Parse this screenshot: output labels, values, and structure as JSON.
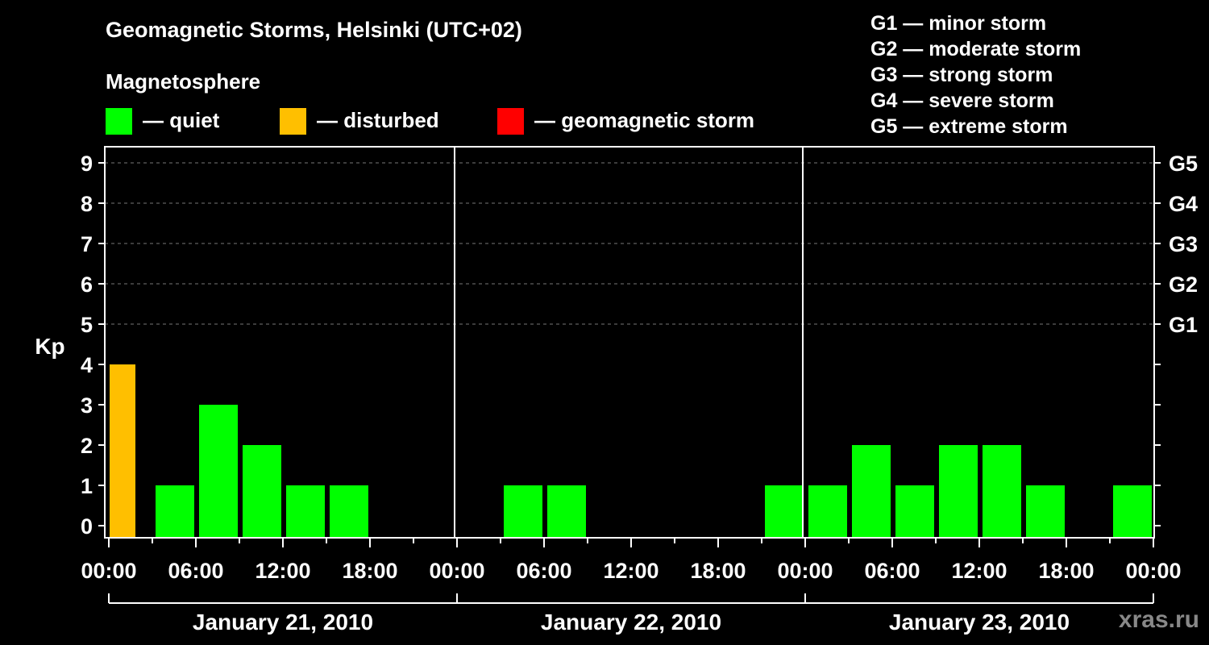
{
  "title": "Geomagnetic Storms, Helsinki (UTC+02)",
  "subtitle": "Magnetosphere",
  "legend": [
    {
      "label": "— quiet",
      "color": "#00ff00"
    },
    {
      "label": "— disturbed",
      "color": "#ffbf00"
    },
    {
      "label": "— geomagnetic storm",
      "color": "#ff0000"
    }
  ],
  "g_levels": [
    "G1 — minor storm",
    "G2 — moderate storm",
    "G3 — strong storm",
    "G4 — severe storm",
    "G5 — extreme storm"
  ],
  "watermark": "xras.ru",
  "chart_data": {
    "type": "bar",
    "ylabel": "Kp",
    "ylim": [
      0,
      9
    ],
    "y_ticks": [
      0,
      1,
      2,
      3,
      4,
      5,
      6,
      7,
      8,
      9
    ],
    "right_axis_labels": [
      {
        "kp": 5,
        "label": "G1"
      },
      {
        "kp": 6,
        "label": "G2"
      },
      {
        "kp": 7,
        "label": "G3"
      },
      {
        "kp": 8,
        "label": "G4"
      },
      {
        "kp": 9,
        "label": "G5"
      }
    ],
    "x_tick_labels": [
      "00:00",
      "06:00",
      "12:00",
      "18:00",
      "00:00",
      "06:00",
      "12:00",
      "18:00",
      "00:00",
      "06:00",
      "12:00",
      "18:00",
      "00:00"
    ],
    "days": [
      "January 21, 2010",
      "January 22, 2010",
      "January 23, 2010"
    ],
    "interval_hours": 3,
    "grid": "dashed horizontal",
    "bars": [
      {
        "day": "January 21, 2010",
        "start": "00:00",
        "kp": 4,
        "status": "disturbed"
      },
      {
        "day": "January 21, 2010",
        "start": "03:00",
        "kp": 1,
        "status": "quiet"
      },
      {
        "day": "January 21, 2010",
        "start": "06:00",
        "kp": 3,
        "status": "quiet"
      },
      {
        "day": "January 21, 2010",
        "start": "09:00",
        "kp": 2,
        "status": "quiet"
      },
      {
        "day": "January 21, 2010",
        "start": "12:00",
        "kp": 1,
        "status": "quiet"
      },
      {
        "day": "January 21, 2010",
        "start": "15:00",
        "kp": 1,
        "status": "quiet"
      },
      {
        "day": "January 22, 2010",
        "start": "03:00",
        "kp": 1,
        "status": "quiet"
      },
      {
        "day": "January 22, 2010",
        "start": "06:00",
        "kp": 1,
        "status": "quiet"
      },
      {
        "day": "January 22, 2010",
        "start": "21:00",
        "kp": 1,
        "status": "quiet"
      },
      {
        "day": "January 23, 2010",
        "start": "00:00",
        "kp": 1,
        "status": "quiet"
      },
      {
        "day": "January 23, 2010",
        "start": "03:00",
        "kp": 2,
        "status": "quiet"
      },
      {
        "day": "January 23, 2010",
        "start": "06:00",
        "kp": 1,
        "status": "quiet"
      },
      {
        "day": "January 23, 2010",
        "start": "09:00",
        "kp": 2,
        "status": "quiet"
      },
      {
        "day": "January 23, 2010",
        "start": "12:00",
        "kp": 2,
        "status": "quiet"
      },
      {
        "day": "January 23, 2010",
        "start": "15:00",
        "kp": 1,
        "status": "quiet"
      },
      {
        "day": "January 23, 2010",
        "start": "21:00",
        "kp": 1,
        "status": "quiet"
      }
    ],
    "status_colors": {
      "quiet": "#00ff00",
      "disturbed": "#ffbf00",
      "storm": "#ff0000"
    }
  }
}
